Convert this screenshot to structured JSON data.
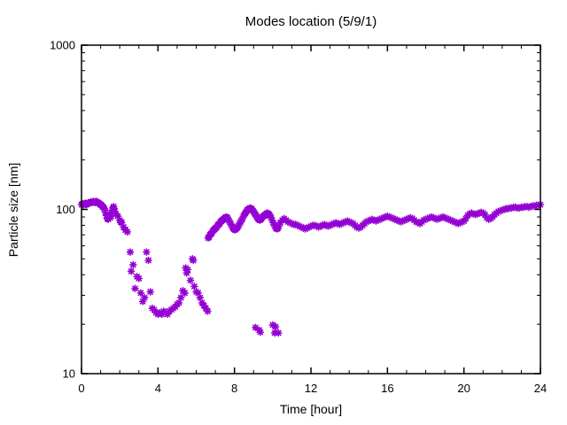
{
  "chart_data": {
    "type": "scatter",
    "title": "Modes location (5/9/1)",
    "xlabel": "Time [hour]",
    "ylabel": "Particle size [nm]",
    "xlim": [
      0,
      24
    ],
    "ylim": [
      10,
      1000
    ],
    "yscale": "log",
    "grid": false,
    "legend": "none",
    "x_major_ticks": [
      0,
      4,
      8,
      12,
      16,
      20,
      24
    ],
    "x_minor_interval": 1,
    "y_major_ticks": [
      10,
      100,
      1000
    ],
    "y_tick_labels": [
      "10",
      "100",
      "1000"
    ],
    "marker": {
      "shape": "asterisk",
      "color": "#9400d3",
      "size": 7
    },
    "series": [
      {
        "points": [
          [
            0,
            107
          ],
          [
            0.05,
            108
          ],
          [
            0.1,
            106
          ],
          [
            0.15,
            108
          ],
          [
            0.2,
            109
          ],
          [
            0.25,
            107
          ],
          [
            0.3,
            108
          ],
          [
            0.35,
            110
          ],
          [
            0.4,
            109
          ],
          [
            0.45,
            110
          ],
          [
            0.5,
            111
          ],
          [
            0.55,
            110
          ],
          [
            0.6,
            112
          ],
          [
            0.65,
            111
          ],
          [
            0.7,
            110
          ],
          [
            0.75,
            112
          ],
          [
            0.8,
            111
          ],
          [
            0.85,
            109
          ],
          [
            0.9,
            110
          ],
          [
            0.95,
            108
          ],
          [
            1,
            107
          ],
          [
            1.05,
            106
          ],
          [
            1.1,
            104
          ],
          [
            1.15,
            103
          ],
          [
            1.2,
            101
          ],
          [
            1.25,
            96
          ],
          [
            1.3,
            92
          ],
          [
            1.35,
            88
          ],
          [
            1.4,
            87
          ],
          [
            1.42,
            90
          ],
          [
            1.45,
            93
          ],
          [
            1.5,
            89
          ],
          [
            1.55,
            91
          ],
          [
            1.6,
            99
          ],
          [
            1.65,
            102
          ],
          [
            1.68,
            104
          ],
          [
            1.7,
            101
          ],
          [
            1.75,
            97
          ],
          [
            1.8,
            94
          ],
          [
            1.9,
            91
          ],
          [
            2,
            86
          ],
          [
            2.05,
            84
          ],
          [
            2.1,
            83
          ],
          [
            2.2,
            78
          ],
          [
            2.3,
            75
          ],
          [
            2.4,
            73
          ],
          [
            2.55,
            55
          ],
          [
            2.6,
            42
          ],
          [
            2.7,
            46
          ],
          [
            2.8,
            33
          ],
          [
            2.9,
            39
          ],
          [
            3,
            38
          ],
          [
            3.1,
            31
          ],
          [
            3.2,
            27.5
          ],
          [
            3.3,
            29
          ],
          [
            3.4,
            55
          ],
          [
            3.5,
            49
          ],
          [
            3.6,
            31.5
          ],
          [
            3.7,
            25
          ],
          [
            3.8,
            24.5
          ],
          [
            3.9,
            23.5
          ],
          [
            4,
            23
          ],
          [
            4.1,
            23.5
          ],
          [
            4.2,
            23
          ],
          [
            4.3,
            24
          ],
          [
            4.4,
            23.5
          ],
          [
            4.5,
            23
          ],
          [
            4.6,
            24
          ],
          [
            4.7,
            24.5
          ],
          [
            4.8,
            25
          ],
          [
            4.9,
            25.5
          ],
          [
            5,
            26.5
          ],
          [
            5.1,
            27
          ],
          [
            5.2,
            29
          ],
          [
            5.3,
            32
          ],
          [
            5.4,
            31
          ],
          [
            5.45,
            44
          ],
          [
            5.5,
            41
          ],
          [
            5.55,
            43
          ],
          [
            5.7,
            37
          ],
          [
            5.8,
            50
          ],
          [
            5.85,
            49
          ],
          [
            5.9,
            34
          ],
          [
            6,
            31.5
          ],
          [
            6.1,
            31
          ],
          [
            6.2,
            29
          ],
          [
            6.3,
            27
          ],
          [
            6.4,
            26
          ],
          [
            6.5,
            25
          ],
          [
            6.6,
            24
          ],
          [
            6.62,
            67
          ],
          [
            6.67,
            68
          ],
          [
            6.72,
            70
          ],
          [
            6.77,
            71
          ],
          [
            6.82,
            72
          ],
          [
            6.87,
            74
          ],
          [
            6.92,
            75
          ],
          [
            6.97,
            76
          ],
          [
            7.02,
            77
          ],
          [
            7.07,
            78
          ],
          [
            7.12,
            80
          ],
          [
            7.17,
            81
          ],
          [
            7.22,
            82
          ],
          [
            7.27,
            84
          ],
          [
            7.32,
            85
          ],
          [
            7.37,
            86
          ],
          [
            7.42,
            87
          ],
          [
            7.47,
            88
          ],
          [
            7.52,
            89
          ],
          [
            7.57,
            90
          ],
          [
            7.62,
            89
          ],
          [
            7.67,
            87
          ],
          [
            7.72,
            85
          ],
          [
            7.77,
            83
          ],
          [
            7.82,
            81
          ],
          [
            7.87,
            79
          ],
          [
            7.92,
            77
          ],
          [
            7.97,
            76
          ],
          [
            8.02,
            75
          ],
          [
            8.07,
            76
          ],
          [
            8.12,
            77
          ],
          [
            8.17,
            78
          ],
          [
            8.22,
            80
          ],
          [
            8.27,
            82
          ],
          [
            8.32,
            84
          ],
          [
            8.37,
            86
          ],
          [
            8.42,
            88
          ],
          [
            8.47,
            91
          ],
          [
            8.52,
            93
          ],
          [
            8.57,
            95
          ],
          [
            8.62,
            97
          ],
          [
            8.67,
            99
          ],
          [
            8.72,
            100
          ],
          [
            8.77,
            101
          ],
          [
            8.82,
            102
          ],
          [
            8.87,
            101
          ],
          [
            8.92,
            100
          ],
          [
            8.97,
            98
          ],
          [
            9.02,
            96
          ],
          [
            9.07,
            94
          ],
          [
            9.12,
            92
          ],
          [
            9.17,
            90
          ],
          [
            9.22,
            88
          ],
          [
            9.27,
            87
          ],
          [
            9.32,
            86
          ],
          [
            9.37,
            87
          ],
          [
            9.42,
            88
          ],
          [
            9.47,
            90
          ],
          [
            9.52,
            91
          ],
          [
            9.57,
            92
          ],
          [
            9.62,
            93
          ],
          [
            9.67,
            94
          ],
          [
            9.72,
            95
          ],
          [
            9.77,
            94
          ],
          [
            9.82,
            93
          ],
          [
            9.87,
            91
          ],
          [
            9.92,
            89
          ],
          [
            9.97,
            86
          ],
          [
            10.02,
            83
          ],
          [
            10.07,
            81
          ],
          [
            10.12,
            79
          ],
          [
            10.17,
            77
          ],
          [
            10.22,
            76
          ],
          [
            10.27,
            77
          ],
          [
            10.32,
            79
          ],
          [
            9.1,
            19.1
          ],
          [
            9.3,
            18.4
          ],
          [
            9.35,
            17.9
          ],
          [
            10,
            19.8
          ],
          [
            10.1,
            17.7
          ],
          [
            10.15,
            19.3
          ],
          [
            10.3,
            17.7
          ],
          [
            10.4,
            83
          ],
          [
            10.5,
            86
          ],
          [
            10.6,
            88
          ],
          [
            10.7,
            86
          ],
          [
            10.8,
            84
          ],
          [
            10.9,
            83
          ],
          [
            11,
            82
          ],
          [
            11.1,
            81
          ],
          [
            11.2,
            81
          ],
          [
            11.3,
            80
          ],
          [
            11.4,
            79
          ],
          [
            11.5,
            78
          ],
          [
            11.6,
            77
          ],
          [
            11.7,
            76
          ],
          [
            11.8,
            77
          ],
          [
            11.9,
            78
          ],
          [
            12,
            79
          ],
          [
            12.1,
            80
          ],
          [
            12.2,
            80
          ],
          [
            12.3,
            79
          ],
          [
            12.4,
            78
          ],
          [
            12.5,
            79
          ],
          [
            12.6,
            80
          ],
          [
            12.7,
            81
          ],
          [
            12.8,
            80
          ],
          [
            12.9,
            79
          ],
          [
            13,
            80
          ],
          [
            13.1,
            81
          ],
          [
            13.2,
            82
          ],
          [
            13.3,
            83
          ],
          [
            13.4,
            82
          ],
          [
            13.5,
            81
          ],
          [
            13.6,
            82
          ],
          [
            13.7,
            83
          ],
          [
            13.8,
            84
          ],
          [
            13.9,
            85
          ],
          [
            14,
            84
          ],
          [
            14.1,
            83
          ],
          [
            14.2,
            82
          ],
          [
            14.3,
            80
          ],
          [
            14.4,
            78
          ],
          [
            14.5,
            77
          ],
          [
            14.6,
            78
          ],
          [
            14.7,
            80
          ],
          [
            14.8,
            82
          ],
          [
            14.9,
            84
          ],
          [
            15,
            85
          ],
          [
            15.1,
            86
          ],
          [
            15.2,
            87
          ],
          [
            15.3,
            86
          ],
          [
            15.4,
            85
          ],
          [
            15.5,
            86
          ],
          [
            15.6,
            87
          ],
          [
            15.7,
            88
          ],
          [
            15.8,
            89
          ],
          [
            15.9,
            90
          ],
          [
            16,
            91
          ],
          [
            16.1,
            90
          ],
          [
            16.2,
            89
          ],
          [
            16.3,
            88
          ],
          [
            16.4,
            87
          ],
          [
            16.5,
            86
          ],
          [
            16.6,
            85
          ],
          [
            16.7,
            84
          ],
          [
            16.8,
            85
          ],
          [
            16.9,
            86
          ],
          [
            17,
            87
          ],
          [
            17.1,
            88
          ],
          [
            17.2,
            89
          ],
          [
            17.3,
            88
          ],
          [
            17.4,
            86
          ],
          [
            17.5,
            84
          ],
          [
            17.6,
            83
          ],
          [
            17.7,
            82
          ],
          [
            17.8,
            84
          ],
          [
            17.9,
            86
          ],
          [
            18,
            87
          ],
          [
            18.1,
            88
          ],
          [
            18.2,
            89
          ],
          [
            18.3,
            90
          ],
          [
            18.4,
            89
          ],
          [
            18.5,
            88
          ],
          [
            18.6,
            87
          ],
          [
            18.7,
            88
          ],
          [
            18.8,
            89
          ],
          [
            18.9,
            90
          ],
          [
            19,
            89
          ],
          [
            19.1,
            88
          ],
          [
            19.2,
            87
          ],
          [
            19.3,
            86
          ],
          [
            19.4,
            85
          ],
          [
            19.5,
            84
          ],
          [
            19.6,
            83
          ],
          [
            19.7,
            82
          ],
          [
            19.8,
            83
          ],
          [
            19.9,
            84
          ],
          [
            20,
            85
          ],
          [
            20.1,
            88
          ],
          [
            20.2,
            92
          ],
          [
            20.3,
            94
          ],
          [
            20.4,
            95
          ],
          [
            20.5,
            94
          ],
          [
            20.6,
            93
          ],
          [
            20.7,
            94
          ],
          [
            20.8,
            95
          ],
          [
            20.9,
            96
          ],
          [
            21,
            95
          ],
          [
            21.1,
            93
          ],
          [
            21.2,
            89
          ],
          [
            21.3,
            87
          ],
          [
            21.4,
            88
          ],
          [
            21.5,
            90
          ],
          [
            21.6,
            93
          ],
          [
            21.7,
            95
          ],
          [
            21.8,
            97
          ],
          [
            21.9,
            98
          ],
          [
            22,
            99
          ],
          [
            22.1,
            100
          ],
          [
            22.2,
            101
          ],
          [
            22.3,
            101
          ],
          [
            22.4,
            102
          ],
          [
            22.5,
            102
          ],
          [
            22.6,
            103
          ],
          [
            22.7,
            103
          ],
          [
            22.8,
            102
          ],
          [
            22.9,
            102
          ],
          [
            23,
            103
          ],
          [
            23.1,
            103
          ],
          [
            23.2,
            104
          ],
          [
            23.3,
            104
          ],
          [
            23.4,
            103
          ],
          [
            23.5,
            104
          ],
          [
            23.6,
            105
          ],
          [
            23.7,
            105
          ],
          [
            23.8,
            106
          ],
          [
            23.9,
            106
          ],
          [
            24,
            107
          ]
        ]
      }
    ]
  }
}
